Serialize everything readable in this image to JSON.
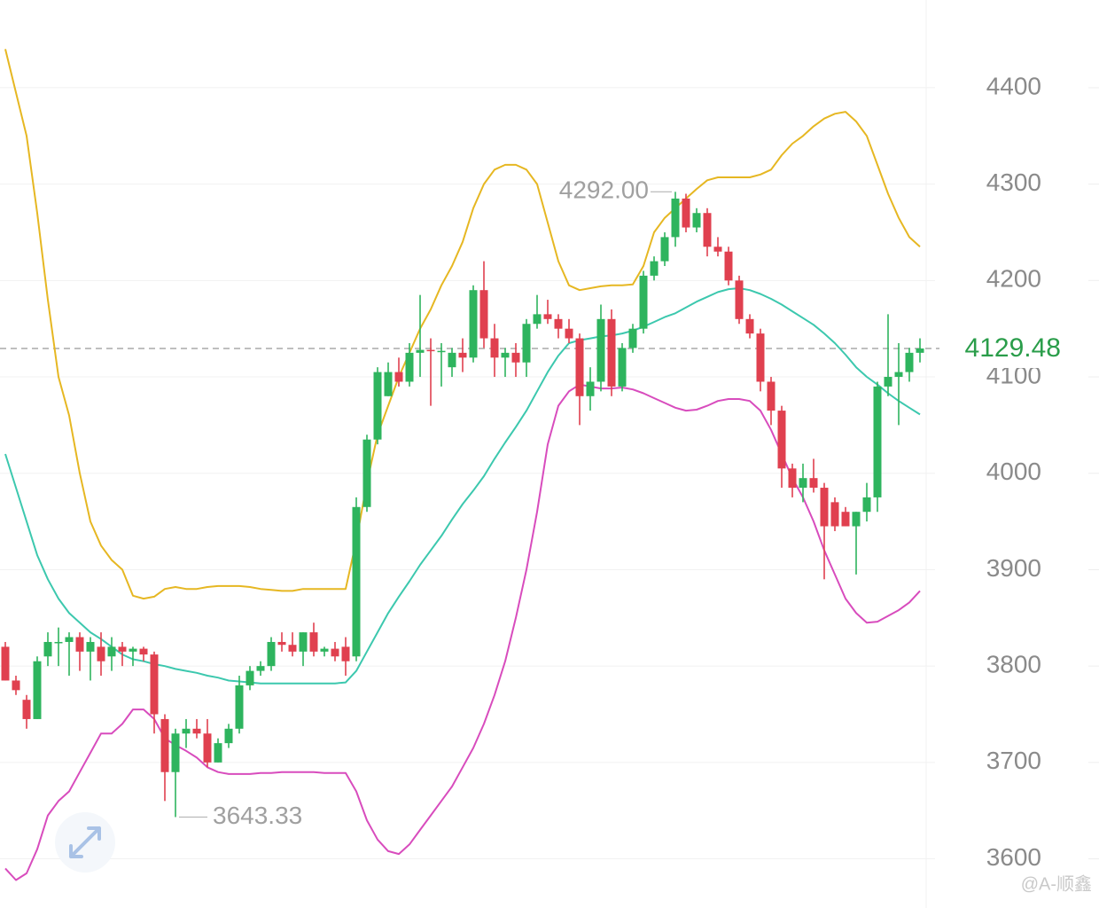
{
  "chart_data": {
    "type": "candlestick",
    "open": [
      3820,
      3785,
      3765,
      3745,
      3810,
      3825,
      3825,
      3830,
      3815,
      3820,
      3810,
      3820,
      3815,
      3818,
      3812,
      3745,
      3690,
      3730,
      3735,
      3730,
      3700,
      3720,
      3735,
      3780,
      3795,
      3800,
      3825,
      3822,
      3815,
      3835,
      3815,
      3818,
      3820,
      3810,
      3965,
      4035,
      4080,
      4105,
      4095,
      4125,
      4128,
      4127,
      4110,
      4125,
      4120,
      4190,
      4140,
      4120,
      4125,
      4115,
      4155,
      4165,
      4160,
      4150,
      4140,
      4080,
      4095,
      4160,
      4090,
      4130,
      4150,
      4205,
      4220,
      4245,
      4285,
      4255,
      4270,
      4235,
      4230,
      4200,
      4160,
      4145,
      4095,
      4065,
      4005,
      3985,
      3995,
      3985,
      3970,
      3960,
      3945,
      3960,
      3975,
      4090,
      4100,
      4105,
      4125
    ],
    "high": [
      3825,
      3790,
      3770,
      3810,
      3835,
      3840,
      3835,
      3835,
      3830,
      3835,
      3830,
      3825,
      3820,
      3820,
      3815,
      3750,
      3735,
      3745,
      3745,
      3745,
      3725,
      3740,
      3790,
      3800,
      3805,
      3830,
      3835,
      3835,
      3835,
      3845,
      3820,
      3825,
      3830,
      3975,
      4040,
      4110,
      4115,
      4120,
      4135,
      4185,
      4140,
      4135,
      4130,
      4140,
      4195,
      4220,
      4155,
      4130,
      4135,
      4160,
      4185,
      4180,
      4165,
      4160,
      4145,
      4110,
      4175,
      4170,
      4135,
      4155,
      4210,
      4225,
      4250,
      4292,
      4290,
      4275,
      4275,
      4245,
      4235,
      4205,
      4165,
      4150,
      4100,
      4070,
      4010,
      4010,
      4015,
      3990,
      3975,
      3965,
      3960,
      3990,
      4095,
      4165,
      4135,
      4130,
      4140
    ],
    "low": [
      3785,
      3770,
      3735,
      3745,
      3800,
      3800,
      3790,
      3795,
      3785,
      3790,
      3795,
      3800,
      3800,
      3805,
      3730,
      3660,
      3643.33,
      3715,
      3725,
      3695,
      3700,
      3715,
      3730,
      3775,
      3790,
      3795,
      3815,
      3810,
      3800,
      3810,
      3810,
      3805,
      3790,
      3805,
      3960,
      4030,
      4080,
      4090,
      4090,
      4100,
      4070,
      4090,
      4100,
      4105,
      4115,
      4130,
      4100,
      4100,
      4100,
      4100,
      4150,
      4155,
      4140,
      4135,
      4050,
      4065,
      4085,
      4080,
      4085,
      4125,
      4145,
      4200,
      4215,
      4235,
      4250,
      4250,
      4225,
      4225,
      4195,
      4155,
      4140,
      4085,
      4050,
      3985,
      3975,
      3970,
      3980,
      3890,
      3940,
      3945,
      3895,
      3950,
      3960,
      4080,
      4050,
      4095,
      4115
    ],
    "close": [
      3785,
      3775,
      3745,
      3805,
      3825,
      3825,
      3830,
      3815,
      3825,
      3805,
      3820,
      3815,
      3818,
      3812,
      3750,
      3690,
      3730,
      3735,
      3730,
      3700,
      3720,
      3735,
      3780,
      3795,
      3800,
      3825,
      3822,
      3815,
      3835,
      3815,
      3818,
      3810,
      3805,
      3965,
      4035,
      4105,
      4105,
      4095,
      4125,
      4128,
      4127,
      4127,
      4125,
      4120,
      4190,
      4140,
      4120,
      4125,
      4115,
      4155,
      4165,
      4160,
      4150,
      4140,
      4080,
      4095,
      4160,
      4090,
      4130,
      4150,
      4205,
      4220,
      4245,
      4285,
      4255,
      4270,
      4235,
      4230,
      4200,
      4160,
      4145,
      4095,
      4065,
      4005,
      3985,
      3995,
      3985,
      3945,
      3945,
      3945,
      3960,
      3975,
      4090,
      4100,
      4105,
      4125,
      4129.48
    ],
    "up_color": "#2eb45e",
    "down_color": "#e0404f",
    "series": [
      {
        "name": "upper",
        "color": "#e6b722",
        "values": [
          4440,
          4395,
          4350,
          4270,
          4180,
          4100,
          4060,
          4000,
          3950,
          3925,
          3910,
          3900,
          3873,
          3870,
          3872,
          3880,
          3882,
          3880,
          3880,
          3882,
          3883,
          3883,
          3883,
          3882,
          3880,
          3879,
          3878,
          3878,
          3880,
          3880,
          3880,
          3880,
          3880,
          3930,
          3990,
          4040,
          4070,
          4100,
          4125,
          4150,
          4170,
          4195,
          4215,
          4240,
          4275,
          4300,
          4315,
          4320,
          4320,
          4315,
          4300,
          4260,
          4220,
          4195,
          4190,
          4192,
          4194,
          4195,
          4195,
          4196,
          4215,
          4250,
          4265,
          4275,
          4285,
          4295,
          4304,
          4307,
          4307,
          4307,
          4307,
          4310,
          4315,
          4330,
          4342,
          4350,
          4360,
          4368,
          4373,
          4375,
          4365,
          4350,
          4320,
          4290,
          4265,
          4245,
          4235
        ]
      },
      {
        "name": "middle",
        "color": "#3cc8ae",
        "values": [
          4020,
          3985,
          3950,
          3915,
          3890,
          3870,
          3855,
          3845,
          3835,
          3828,
          3820,
          3812,
          3807,
          3805,
          3802,
          3800,
          3797,
          3795,
          3793,
          3790,
          3788,
          3785,
          3784,
          3783,
          3782,
          3782,
          3782,
          3782,
          3782,
          3782,
          3782,
          3782,
          3783,
          3795,
          3815,
          3835,
          3855,
          3872,
          3888,
          3905,
          3920,
          3935,
          3952,
          3968,
          3982,
          3997,
          4015,
          4032,
          4048,
          4065,
          4085,
          4105,
          4122,
          4135,
          4138,
          4140,
          4142,
          4143,
          4145,
          4148,
          4152,
          4157,
          4162,
          4166,
          4172,
          4178,
          4183,
          4188,
          4191,
          4192,
          4190,
          4186,
          4181,
          4175,
          4168,
          4161,
          4154,
          4145,
          4135,
          4123,
          4110,
          4100,
          4092,
          4083,
          4075,
          4068,
          4061
        ]
      },
      {
        "name": "lower",
        "color": "#d84cbd",
        "values": [
          3590,
          3578,
          3585,
          3610,
          3645,
          3660,
          3670,
          3690,
          3710,
          3730,
          3730,
          3740,
          3755,
          3755,
          3745,
          3725,
          3718,
          3712,
          3705,
          3695,
          3690,
          3688,
          3688,
          3688,
          3689,
          3689,
          3690,
          3690,
          3690,
          3690,
          3689,
          3689,
          3689,
          3670,
          3640,
          3620,
          3608,
          3605,
          3615,
          3630,
          3645,
          3660,
          3675,
          3695,
          3715,
          3740,
          3770,
          3805,
          3850,
          3900,
          3960,
          4030,
          4070,
          4085,
          4092,
          4090,
          4088,
          4088,
          4089,
          4087,
          4083,
          4078,
          4073,
          4068,
          4065,
          4066,
          4070,
          4075,
          4077,
          4077,
          4075,
          4065,
          4045,
          4020,
          3995,
          3975,
          3950,
          3920,
          3895,
          3870,
          3855,
          3845,
          3846,
          3852,
          3858,
          3866,
          3878
        ]
      }
    ],
    "ylim": [
      3549,
      4491
    ],
    "yticks": [
      3600,
      3700,
      3800,
      3900,
      4000,
      4100,
      4200,
      4300,
      4400
    ],
    "grid": true,
    "high_annotation": {
      "value": 4292,
      "label": "4292.00"
    },
    "low_annotation": 3643.33,
    "current_price": 4129.48,
    "current_price_color": "#2a9d4a",
    "watermark": "@A-顺鑫"
  }
}
